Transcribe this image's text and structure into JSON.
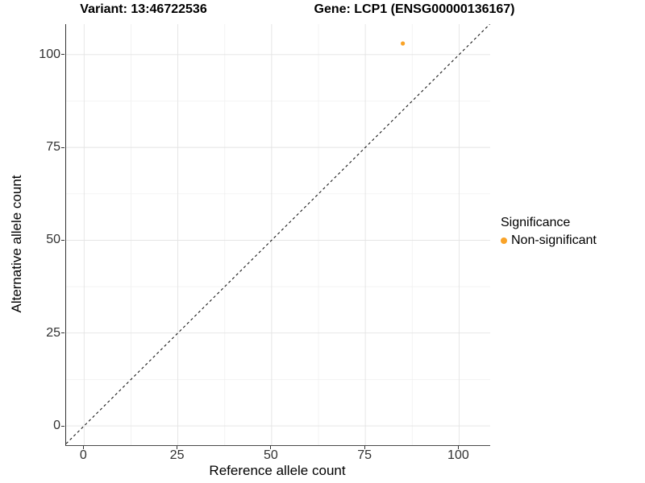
{
  "titles": {
    "left": "Variant: 13:46722536",
    "right": "Gene: LCP1 (ENSG00000136167)"
  },
  "colors": {
    "background": "#FFFFFF",
    "point_orange": "#F9A328",
    "grid_major": "#E3E3E3",
    "grid_minor": "#F0F0F0",
    "axis_line": "#333333",
    "identity_line": "#1A1A1A",
    "text": "#000000"
  },
  "chart_data": {
    "type": "scatter",
    "title": "Variant: 13:46722536    Gene: LCP1 (ENSG00000136167)",
    "xlabel": "Reference allele count",
    "ylabel": "Alternative allele count",
    "xlim": [
      -4.8,
      108.3
    ],
    "ylim": [
      -5.2,
      108.2
    ],
    "x_ticks": [
      0,
      25,
      50,
      75,
      100
    ],
    "y_ticks": [
      0,
      25,
      50,
      75,
      100
    ],
    "x_minor_ticks": [
      12.5,
      37.5,
      62.5,
      87.5
    ],
    "y_minor_ticks": [
      12.5,
      37.5,
      62.5,
      87.5
    ],
    "grid": "major+minor",
    "panel_background": "#FFFFFF",
    "identity_line": {
      "slope": 1,
      "intercept": 0,
      "style": "dashed",
      "color": "#1A1A1A"
    },
    "series": [
      {
        "name": "Non-significant",
        "color": "#F9A328",
        "point_radius": 2.6,
        "points": [
          {
            "x": 85,
            "y": 103
          }
        ]
      }
    ],
    "legend": {
      "title": "Significance",
      "position": "right",
      "items": [
        {
          "label": "Non-significant",
          "color": "#F9A328",
          "marker": "circle-icon"
        }
      ]
    }
  }
}
